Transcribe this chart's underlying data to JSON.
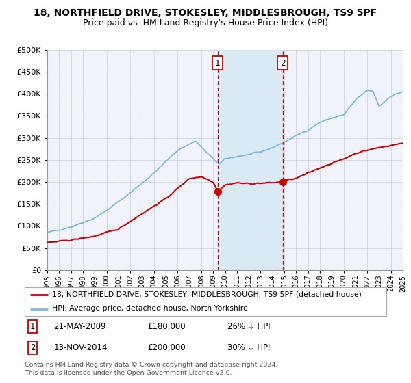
{
  "title": "18, NORTHFIELD DRIVE, STOKESLEY, MIDDLESBROUGH, TS9 5PF",
  "subtitle": "Price paid vs. HM Land Registry's House Price Index (HPI)",
  "x_start_year": 1995,
  "x_end_year": 2025,
  "ylim": [
    0,
    500000
  ],
  "yticks": [
    0,
    50000,
    100000,
    150000,
    200000,
    250000,
    300000,
    350000,
    400000,
    450000,
    500000
  ],
  "sale1_date": 2009.38,
  "sale1_price": 180000,
  "sale1_label": "1",
  "sale1_text": "21-MAY-2009",
  "sale1_pct": "26% ↓ HPI",
  "sale2_date": 2014.87,
  "sale2_price": 200000,
  "sale2_label": "2",
  "sale2_text": "13-NOV-2014",
  "sale2_pct": "30% ↓ HPI",
  "hpi_color": "#7ab8d9",
  "price_color": "#cc0000",
  "shade_color": "#daeaf5",
  "vline_color": "#cc0000",
  "legend1_text": "18, NORTHFIELD DRIVE, STOKESLEY, MIDDLESBROUGH, TS9 5PF (detached house)",
  "legend2_text": "HPI: Average price, detached house, North Yorkshire",
  "footer1": "Contains HM Land Registry data © Crown copyright and database right 2024.",
  "footer2": "This data is licensed under the Open Government Licence v3.0.",
  "bg_color": "#f0f4fa",
  "grid_color": "#c8d0dc"
}
